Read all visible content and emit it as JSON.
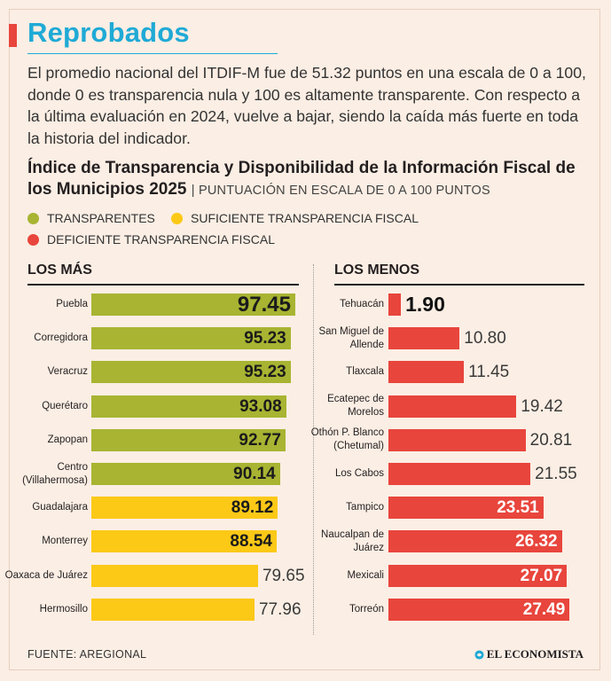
{
  "title": "Reprobados",
  "intro": "El promedio nacional del ITDIF-M fue de 51.32 puntos en una escala de 0 a 100, donde 0 es transparencia nula y 100 es altamente transparente. Con respecto a la última evaluación en 2024, vuelve a bajar, siendo la caída más fuerte en toda la historia del indicador.",
  "chart_title": "Índice de Transparencia y Disponibilidad de la Información Fiscal de los Municipios 2025",
  "chart_unit": "| PUNTUACIÓN EN ESCALA DE 0 A 100 PUNTOS",
  "legend": [
    {
      "label": "TRANSPARENTES",
      "color": "#a8b432"
    },
    {
      "label": "SUFICIENTE TRANSPARENCIA FISCAL",
      "color": "#fcc917"
    },
    {
      "label": "DEFICIENTE TRANSPARENCIA FISCAL",
      "color": "#e8453c"
    }
  ],
  "footer": "FUENTE: AREGIONAL",
  "brand": "EL ECONOMISTA",
  "chart_data": [
    {
      "type": "bar",
      "orientation": "horizontal",
      "title": "LOS MÁS",
      "xlim": [
        0,
        100
      ],
      "categories": [
        "Puebla",
        "Corregidora",
        "Veracruz",
        "Querétaro",
        "Zapopan",
        "Centro (Villahermosa)",
        "Guadalajara",
        "Monterrey",
        "Oaxaca de Juárez",
        "Hermosillo"
      ],
      "values": [
        97.45,
        95.23,
        95.23,
        93.08,
        92.77,
        90.14,
        89.12,
        88.54,
        79.65,
        77.96
      ],
      "value_labels": [
        "97.45",
        "95.23",
        "95.23",
        "93.08",
        "92.77",
        "90.14",
        "89.12",
        "88.54",
        "79.65",
        "77.96"
      ],
      "categories_class": [
        "TRANSPARENTES",
        "TRANSPARENTES",
        "TRANSPARENTES",
        "TRANSPARENTES",
        "TRANSPARENTES",
        "TRANSPARENTES",
        "SUFICIENTE TRANSPARENCIA FISCAL",
        "SUFICIENTE TRANSPARENCIA FISCAL",
        "SUFICIENTE TRANSPARENCIA FISCAL",
        "SUFICIENTE TRANSPARENCIA FISCAL"
      ],
      "colors": [
        "#a8b432",
        "#a8b432",
        "#a8b432",
        "#a8b432",
        "#a8b432",
        "#a8b432",
        "#fcc917",
        "#fcc917",
        "#fcc917",
        "#fcc917"
      ]
    },
    {
      "type": "bar",
      "orientation": "horizontal",
      "title": "LOS MENOS",
      "xlim": [
        0,
        30
      ],
      "categories": [
        "Tehuacán",
        "San Miguel de Allende",
        "Tlaxcala",
        "Ecatepec de Morelos",
        "Othón P. Blanco (Chetumal)",
        "Los Cabos",
        "Tampico",
        "Naucalpan de Juárez",
        "Mexicali",
        "Torreón"
      ],
      "values": [
        1.9,
        10.8,
        11.45,
        19.42,
        20.81,
        21.55,
        23.51,
        26.32,
        27.07,
        27.49
      ],
      "value_labels": [
        "1.90",
        "10.80",
        "11.45",
        "19.42",
        "20.81",
        "21.55",
        "23.51",
        "26.32",
        "27.07",
        "27.49"
      ],
      "categories_class": [
        "DEFICIENTE TRANSPARENCIA FISCAL",
        "DEFICIENTE TRANSPARENCIA FISCAL",
        "DEFICIENTE TRANSPARENCIA FISCAL",
        "DEFICIENTE TRANSPARENCIA FISCAL",
        "DEFICIENTE TRANSPARENCIA FISCAL",
        "DEFICIENTE TRANSPARENCIA FISCAL",
        "DEFICIENTE TRANSPARENCIA FISCAL",
        "DEFICIENTE TRANSPARENCIA FISCAL",
        "DEFICIENTE TRANSPARENCIA FISCAL",
        "DEFICIENTE TRANSPARENCIA FISCAL"
      ],
      "colors": [
        "#e8453c",
        "#e8453c",
        "#e8453c",
        "#e8453c",
        "#e8453c",
        "#e8453c",
        "#e8453c",
        "#e8453c",
        "#e8453c",
        "#e8453c"
      ]
    }
  ]
}
